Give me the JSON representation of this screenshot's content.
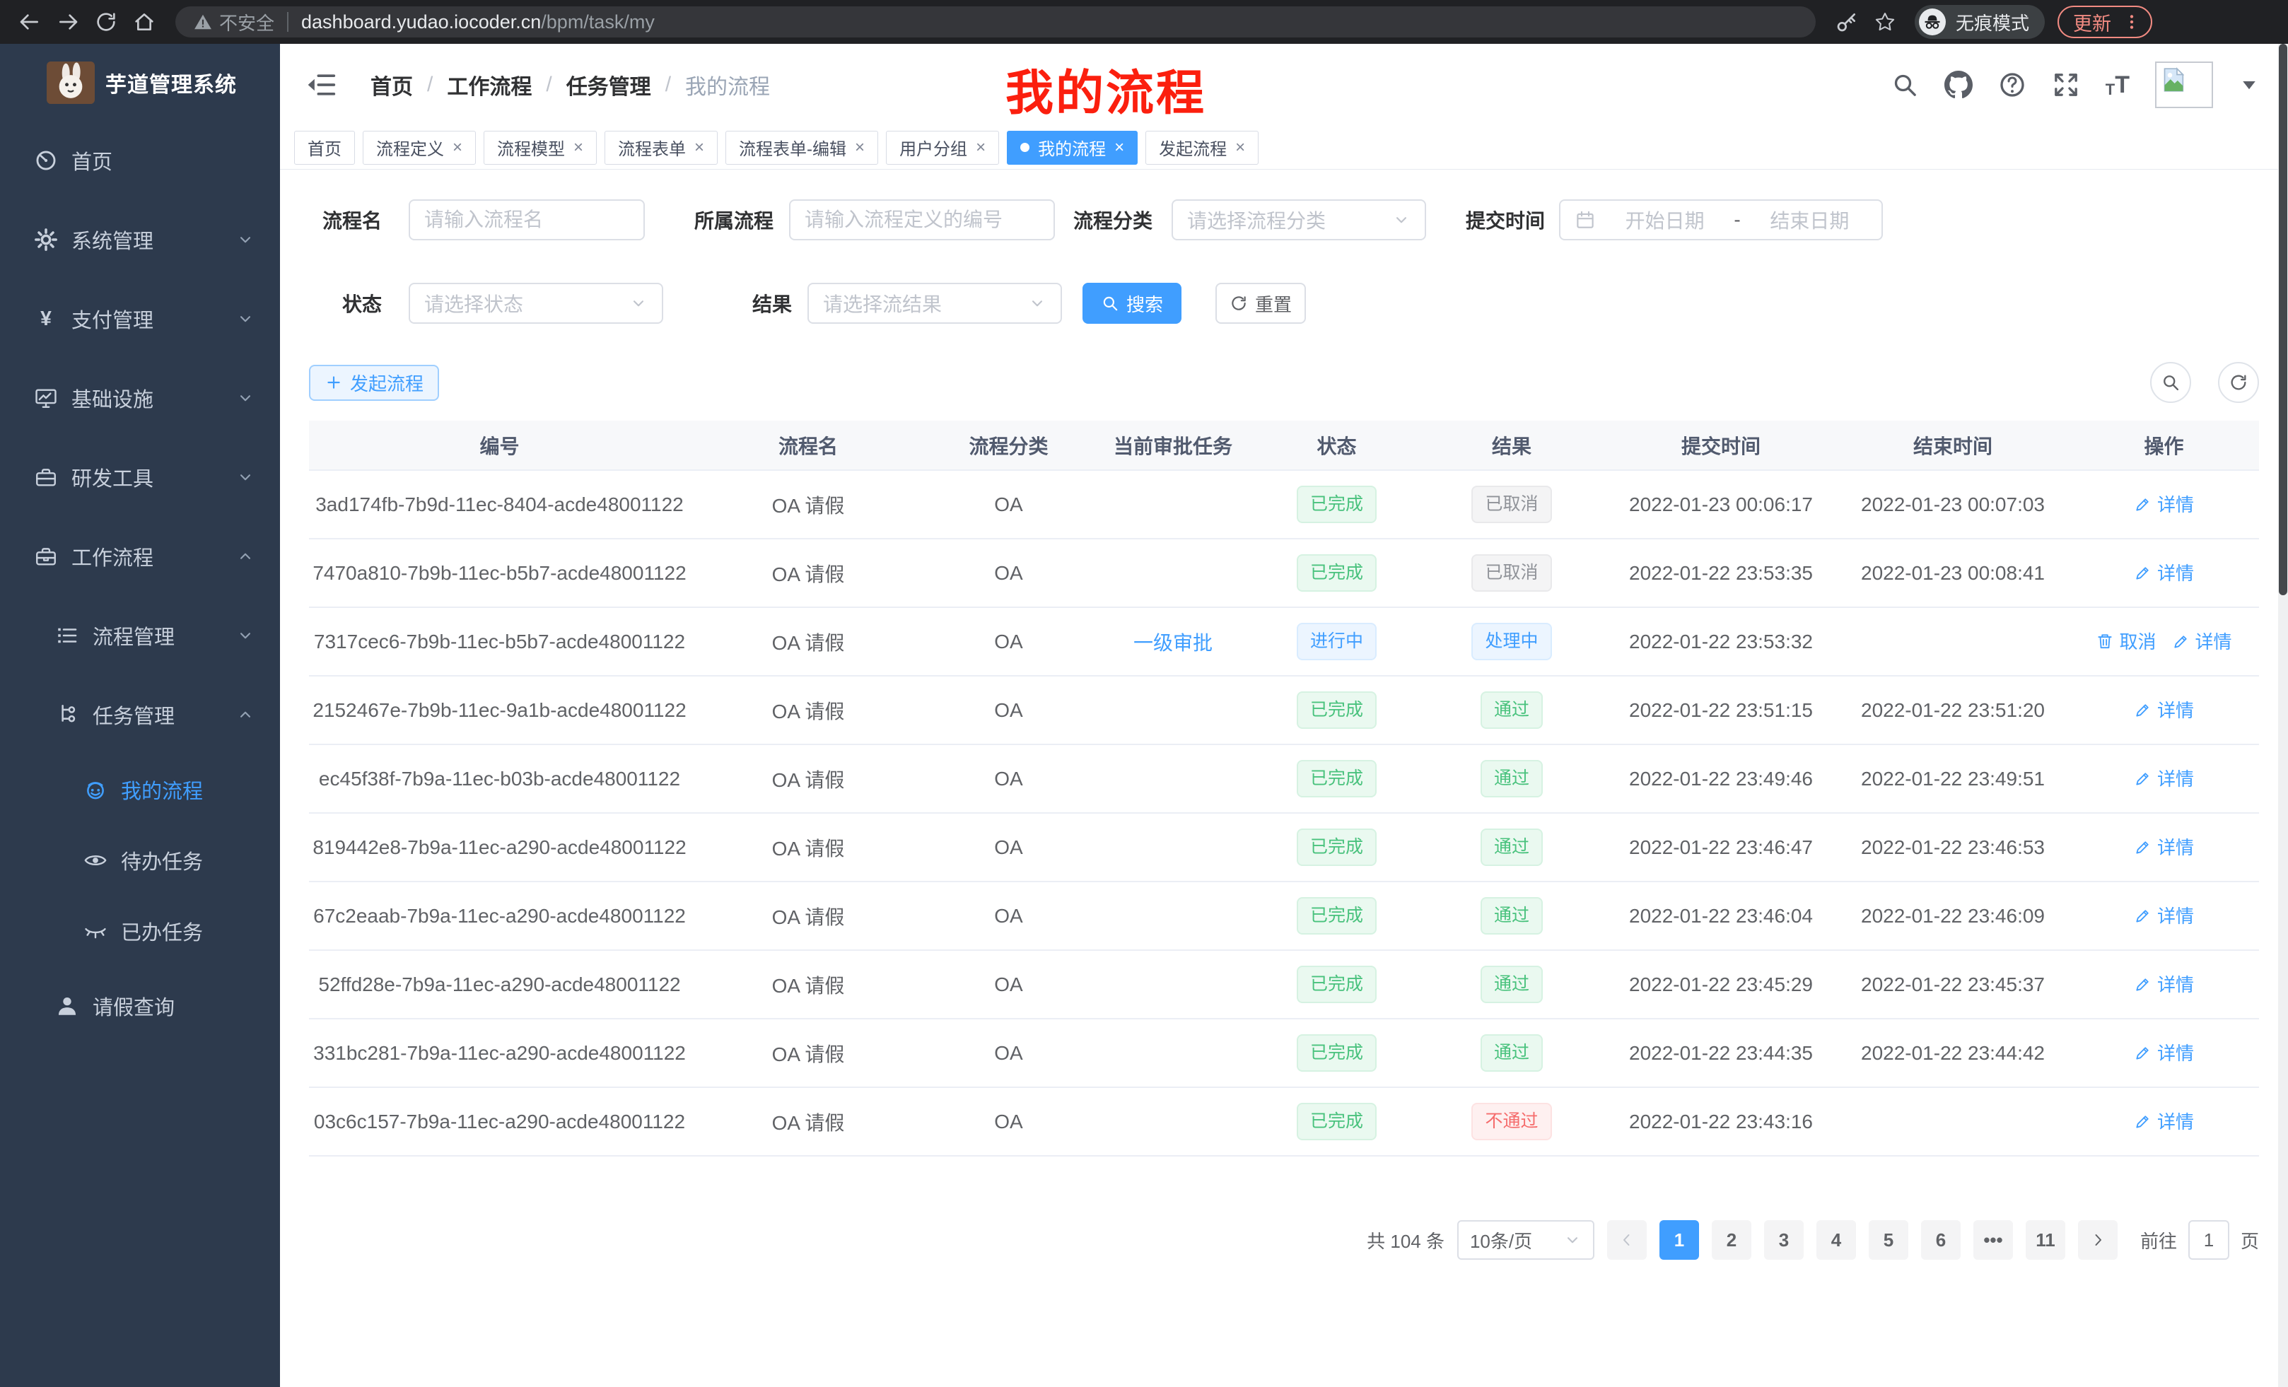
{
  "colors": {
    "accent": "#409eff",
    "success": "#49c27d",
    "danger": "#f56c6c",
    "info": "#909399",
    "annotation_red": "#fb1f0e",
    "update_red": "#f28b82",
    "sidebar_bg": "#2d3a4d"
  },
  "browser": {
    "security_warning": "不安全",
    "url_host": "dashboard.yudao.iocoder.cn",
    "url_path": "/bpm/task/my",
    "incognito_label": "无痕模式",
    "update_label": "更新"
  },
  "sidebar": {
    "title": "芋道管理系统",
    "menu": [
      {
        "label": "首页",
        "icon": "dashboard-icon",
        "level": 1,
        "chevron": null,
        "active": false
      },
      {
        "label": "系统管理",
        "icon": "gear-icon",
        "level": 1,
        "chevron": "down",
        "active": false
      },
      {
        "label": "支付管理",
        "icon": "yen-icon",
        "level": 1,
        "chevron": "down",
        "active": false
      },
      {
        "label": "基础设施",
        "icon": "monitor-icon",
        "level": 1,
        "chevron": "down",
        "active": false
      },
      {
        "label": "研发工具",
        "icon": "toolbox-icon",
        "level": 1,
        "chevron": "down",
        "active": false
      },
      {
        "label": "工作流程",
        "icon": "briefcase-icon",
        "level": 1,
        "chevron": "up",
        "active": false
      },
      {
        "label": "流程管理",
        "icon": "list-icon",
        "level": 2,
        "chevron": "down",
        "active": false
      },
      {
        "label": "任务管理",
        "icon": "tree-icon",
        "level": 2,
        "chevron": "up",
        "active": false
      },
      {
        "label": "我的流程",
        "icon": "robot-icon",
        "level": 3,
        "chevron": null,
        "active": true
      },
      {
        "label": "待办任务",
        "icon": "eye-icon",
        "level": 3,
        "chevron": null,
        "active": false
      },
      {
        "label": "已办任务",
        "icon": "eye-closed-icon",
        "level": 3,
        "chevron": null,
        "active": false
      },
      {
        "label": "请假查询",
        "icon": "user-icon",
        "level": 2,
        "chevron": null,
        "active": false
      }
    ]
  },
  "header": {
    "breadcrumb": [
      "首页",
      "工作流程",
      "任务管理",
      "我的流程"
    ],
    "annotation": "我的流程"
  },
  "tabs": [
    {
      "label": "首页",
      "closable": false,
      "active": false
    },
    {
      "label": "流程定义",
      "closable": true,
      "active": false
    },
    {
      "label": "流程模型",
      "closable": true,
      "active": false
    },
    {
      "label": "流程表单",
      "closable": true,
      "active": false
    },
    {
      "label": "流程表单-编辑",
      "closable": true,
      "active": false
    },
    {
      "label": "用户分组",
      "closable": true,
      "active": false
    },
    {
      "label": "我的流程",
      "closable": true,
      "active": true
    },
    {
      "label": "发起流程",
      "closable": true,
      "active": false
    }
  ],
  "filters": {
    "name": {
      "label": "流程名",
      "placeholder": "请输入流程名"
    },
    "process": {
      "label": "所属流程",
      "placeholder": "请输入流程定义的编号"
    },
    "category": {
      "label": "流程分类",
      "placeholder": "请选择流程分类"
    },
    "time": {
      "label": "提交时间",
      "start": "开始日期",
      "dash": "-",
      "end": "结束日期"
    },
    "status": {
      "label": "状态",
      "placeholder": "请选择状态"
    },
    "result": {
      "label": "结果",
      "placeholder": "请选择流结果"
    },
    "search_label": "搜索",
    "reset_label": "重置"
  },
  "toolbar": {
    "create_label": "发起流程"
  },
  "table": {
    "columns": [
      "编号",
      "流程名",
      "流程分类",
      "当前审批任务",
      "状态",
      "结果",
      "提交时间",
      "结束时间",
      "操作"
    ],
    "rows": [
      {
        "id": "3ad174fb-7b9d-11ec-8404-acde48001122",
        "name": "OA 请假",
        "category": "OA",
        "task": "",
        "status": {
          "text": "已完成",
          "type": "success"
        },
        "result": {
          "text": "已取消",
          "type": "info"
        },
        "submit": "2022-01-23 00:06:17",
        "end": "2022-01-23 00:07:03",
        "actions": [
          {
            "text": "详情",
            "icon": "edit-icon",
            "name": "detail-link"
          }
        ]
      },
      {
        "id": "7470a810-7b9b-11ec-b5b7-acde48001122",
        "name": "OA 请假",
        "category": "OA",
        "task": "",
        "status": {
          "text": "已完成",
          "type": "success"
        },
        "result": {
          "text": "已取消",
          "type": "info"
        },
        "submit": "2022-01-22 23:53:35",
        "end": "2022-01-23 00:08:41",
        "actions": [
          {
            "text": "详情",
            "icon": "edit-icon",
            "name": "detail-link"
          }
        ]
      },
      {
        "id": "7317cec6-7b9b-11ec-b5b7-acde48001122",
        "name": "OA 请假",
        "category": "OA",
        "task": "一级审批",
        "status": {
          "text": "进行中",
          "type": "processing"
        },
        "result": {
          "text": "处理中",
          "type": "processing"
        },
        "submit": "2022-01-22 23:53:32",
        "end": "",
        "actions": [
          {
            "text": "取消",
            "icon": "trash-icon",
            "name": "cancel-link"
          },
          {
            "text": "详情",
            "icon": "edit-icon",
            "name": "detail-link"
          }
        ]
      },
      {
        "id": "2152467e-7b9b-11ec-9a1b-acde48001122",
        "name": "OA 请假",
        "category": "OA",
        "task": "",
        "status": {
          "text": "已完成",
          "type": "success"
        },
        "result": {
          "text": "通过",
          "type": "success"
        },
        "submit": "2022-01-22 23:51:15",
        "end": "2022-01-22 23:51:20",
        "actions": [
          {
            "text": "详情",
            "icon": "edit-icon",
            "name": "detail-link"
          }
        ]
      },
      {
        "id": "ec45f38f-7b9a-11ec-b03b-acde48001122",
        "name": "OA 请假",
        "category": "OA",
        "task": "",
        "status": {
          "text": "已完成",
          "type": "success"
        },
        "result": {
          "text": "通过",
          "type": "success"
        },
        "submit": "2022-01-22 23:49:46",
        "end": "2022-01-22 23:49:51",
        "actions": [
          {
            "text": "详情",
            "icon": "edit-icon",
            "name": "detail-link"
          }
        ]
      },
      {
        "id": "819442e8-7b9a-11ec-a290-acde48001122",
        "name": "OA 请假",
        "category": "OA",
        "task": "",
        "status": {
          "text": "已完成",
          "type": "success"
        },
        "result": {
          "text": "通过",
          "type": "success"
        },
        "submit": "2022-01-22 23:46:47",
        "end": "2022-01-22 23:46:53",
        "actions": [
          {
            "text": "详情",
            "icon": "edit-icon",
            "name": "detail-link"
          }
        ]
      },
      {
        "id": "67c2eaab-7b9a-11ec-a290-acde48001122",
        "name": "OA 请假",
        "category": "OA",
        "task": "",
        "status": {
          "text": "已完成",
          "type": "success"
        },
        "result": {
          "text": "通过",
          "type": "success"
        },
        "submit": "2022-01-22 23:46:04",
        "end": "2022-01-22 23:46:09",
        "actions": [
          {
            "text": "详情",
            "icon": "edit-icon",
            "name": "detail-link"
          }
        ]
      },
      {
        "id": "52ffd28e-7b9a-11ec-a290-acde48001122",
        "name": "OA 请假",
        "category": "OA",
        "task": "",
        "status": {
          "text": "已完成",
          "type": "success"
        },
        "result": {
          "text": "通过",
          "type": "success"
        },
        "submit": "2022-01-22 23:45:29",
        "end": "2022-01-22 23:45:37",
        "actions": [
          {
            "text": "详情",
            "icon": "edit-icon",
            "name": "detail-link"
          }
        ]
      },
      {
        "id": "331bc281-7b9a-11ec-a290-acde48001122",
        "name": "OA 请假",
        "category": "OA",
        "task": "",
        "status": {
          "text": "已完成",
          "type": "success"
        },
        "result": {
          "text": "通过",
          "type": "success"
        },
        "submit": "2022-01-22 23:44:35",
        "end": "2022-01-22 23:44:42",
        "actions": [
          {
            "text": "详情",
            "icon": "edit-icon",
            "name": "detail-link"
          }
        ]
      },
      {
        "id": "03c6c157-7b9a-11ec-a290-acde48001122",
        "name": "OA 请假",
        "category": "OA",
        "task": "",
        "status": {
          "text": "已完成",
          "type": "success"
        },
        "result": {
          "text": "不通过",
          "type": "danger"
        },
        "submit": "2022-01-22 23:43:16",
        "end": "",
        "actions": [
          {
            "text": "详情",
            "icon": "edit-icon",
            "name": "detail-link"
          }
        ]
      }
    ]
  },
  "pagination": {
    "total": "共 104 条",
    "page_size": "10条/页",
    "pages": [
      "1",
      "2",
      "3",
      "4",
      "5",
      "6",
      "•••",
      "11"
    ],
    "active_page": "1",
    "goto_label": "前往",
    "goto_value": "1",
    "page_unit": "页"
  }
}
